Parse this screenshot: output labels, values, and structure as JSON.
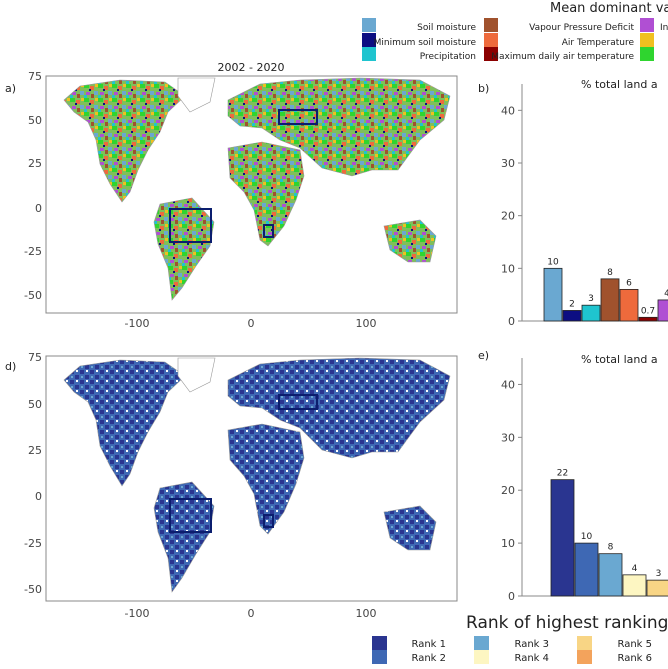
{
  "legend_top": {
    "title": "Mean dominant vari",
    "items": [
      {
        "label": "Soil moisture",
        "color": "#6aa8d1"
      },
      {
        "label": "Minimum soil moisture",
        "color": "#0c0e82"
      },
      {
        "label": "Precipitation",
        "color": "#1fc4cf"
      },
      {
        "label": "Vapour Pressure Deficit",
        "color": "#a0522d"
      },
      {
        "label": "Air Temperature",
        "color": "#ee6a3c"
      },
      {
        "label": "Maximum daily air temperature",
        "color": "#8b0000"
      },
      {
        "label": "In",
        "color": "#b04fd3"
      },
      {
        "label": "",
        "color": "#f0c020"
      },
      {
        "label": "",
        "color": "#2fd52f"
      }
    ]
  },
  "maps": {
    "period_title": "2002 - 2020",
    "x_ticks": [
      "-100",
      "0",
      "100"
    ],
    "y_ticks": [
      "75",
      "50",
      "25",
      "0",
      "-25",
      "-50"
    ],
    "y_tick_values": [
      75,
      50,
      25,
      0,
      -25,
      -50
    ],
    "x_tick_values": [
      -100,
      0,
      100
    ],
    "panel_a": "a)",
    "panel_d": "d)"
  },
  "chart_data": [
    {
      "type": "bar",
      "panel": "b)",
      "title": "% total land a",
      "ylim": [
        0,
        45
      ],
      "yticks": [
        0,
        10,
        20,
        30,
        40
      ],
      "categories": [
        "Soil moisture",
        "Minimum soil moisture",
        "Precipitation",
        "Vapour Pressure Deficit",
        "Air Temperature",
        "Maximum daily air temperature",
        "In"
      ],
      "values": [
        10,
        2,
        3,
        8,
        6,
        0.7,
        4
      ],
      "labels": [
        "10",
        "2",
        "3",
        "8",
        "6",
        "0.7",
        "4"
      ],
      "colors": [
        "#6aa8d1",
        "#0c0e82",
        "#1fc4cf",
        "#a0522d",
        "#ee6a3c",
        "#8b0000",
        "#b04fd3"
      ]
    },
    {
      "type": "bar",
      "panel": "e)",
      "title": "% total land a",
      "ylim": [
        0,
        45
      ],
      "yticks": [
        0,
        10,
        20,
        30,
        40
      ],
      "categories": [
        "Rank 1",
        "Rank 2",
        "Rank 3",
        "Rank 4",
        "Rank 5"
      ],
      "values": [
        22,
        10,
        8,
        4,
        3
      ],
      "labels": [
        "22",
        "10",
        "8",
        "4",
        "3"
      ],
      "colors": [
        "#2a3590",
        "#3e68b4",
        "#6aa8d1",
        "#fdf6c2",
        "#f8d585"
      ]
    }
  ],
  "legend_bottom": {
    "title": "Rank of highest ranking w",
    "items": [
      {
        "label": "Rank 1",
        "color": "#2a3590"
      },
      {
        "label": "Rank 2",
        "color": "#3e68b4"
      },
      {
        "label": "Rank 3",
        "color": "#6aa8d1"
      },
      {
        "label": "Rank 4",
        "color": "#fdf6c2"
      },
      {
        "label": "Rank 5",
        "color": "#f8d585"
      },
      {
        "label": "Rank 6",
        "color": "#f3a35c"
      }
    ]
  }
}
